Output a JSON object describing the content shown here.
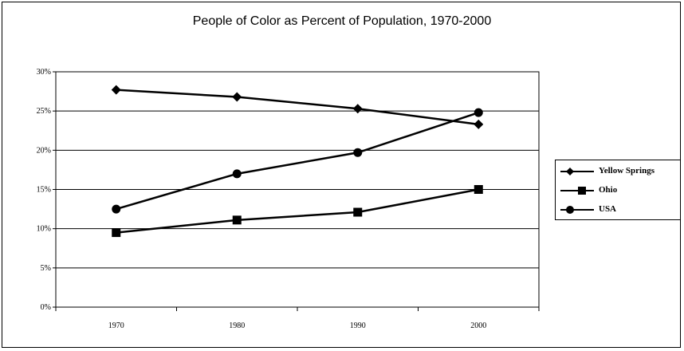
{
  "chart_data": {
    "type": "line",
    "title": "People of Color as Percent of Population, 1970-2000",
    "categories": [
      "1970",
      "1980",
      "1990",
      "2000"
    ],
    "y_ticks": [
      "0%",
      "5%",
      "10%",
      "15%",
      "20%",
      "25%",
      "30%"
    ],
    "ylim": [
      0,
      30
    ],
    "grid": true,
    "legend_position": "right",
    "series": [
      {
        "name": "Yellow Springs",
        "marker": "diamond",
        "values": [
          27.7,
          26.8,
          25.3,
          23.3
        ]
      },
      {
        "name": "Ohio",
        "marker": "square",
        "values": [
          9.5,
          11.1,
          12.1,
          15.0
        ]
      },
      {
        "name": "USA",
        "marker": "circle",
        "values": [
          12.5,
          17.0,
          19.7,
          24.8
        ]
      }
    ],
    "color": "#000000"
  }
}
